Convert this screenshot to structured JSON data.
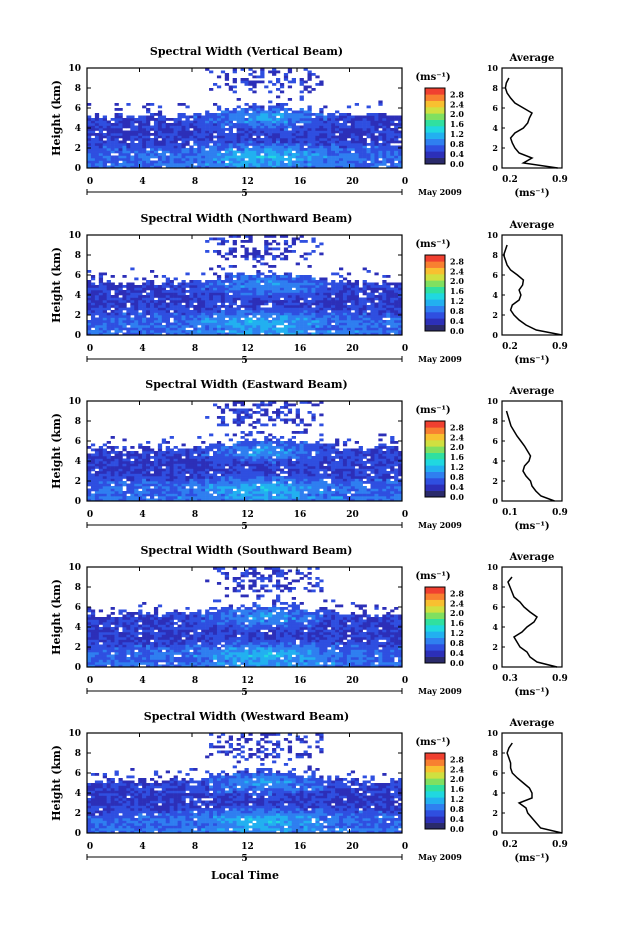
{
  "figure": {
    "colorbar_unit": "(ms⁻¹)",
    "colorbar_ticks": [
      "0.0",
      "0.4",
      "0.8",
      "1.2",
      "1.6",
      "2.0",
      "2.4",
      "2.8"
    ],
    "x_ticks": [
      "0",
      "4",
      "8",
      "12",
      "16",
      "20",
      "0"
    ],
    "date_marker": "5",
    "date_label": "May 2009",
    "y_label": "Height (km)",
    "y_ticks": [
      "0",
      "2",
      "4",
      "6",
      "8",
      "10"
    ],
    "avg_title": "Average",
    "avg_unit": "(ms⁻¹)",
    "x_axis_label": "Local Time",
    "colors": [
      "#2a2a6a",
      "#2c2fb8",
      "#2f4fe0",
      "#2f7ff0",
      "#22b0f0",
      "#20d8e0",
      "#30e0a0",
      "#80e060",
      "#d0e040",
      "#f8c030",
      "#f88030",
      "#f04030"
    ]
  },
  "chart_data": [
    {
      "type": "heatmap",
      "title": "Spectral Width (Vertical Beam)",
      "x_range": [
        0,
        24
      ],
      "y_range": [
        0,
        10
      ],
      "average_profile": {
        "x_ticks": [
          "0.2",
          "0.9"
        ],
        "xlim": [
          0.2,
          0.9
        ],
        "heights": [
          0,
          0.5,
          1,
          1.5,
          2,
          2.5,
          3,
          3.5,
          4,
          4.5,
          5,
          5.5,
          6,
          6.5,
          7,
          7.5,
          8,
          8.5,
          9
        ],
        "values": [
          0.85,
          0.45,
          0.55,
          0.4,
          0.35,
          0.32,
          0.3,
          0.35,
          0.45,
          0.5,
          0.52,
          0.55,
          0.45,
          0.35,
          0.3,
          0.26,
          0.24,
          0.25,
          0.28
        ]
      }
    },
    {
      "type": "heatmap",
      "title": "Spectral Width (Northward Beam)",
      "x_range": [
        0,
        24
      ],
      "y_range": [
        0,
        10
      ],
      "average_profile": {
        "x_ticks": [
          "0.2",
          "0.9"
        ],
        "xlim": [
          0.2,
          0.9
        ],
        "heights": [
          0,
          0.5,
          1,
          1.5,
          2,
          2.5,
          3,
          3.5,
          4,
          4.5,
          5,
          5.5,
          6,
          6.5,
          7,
          7.5,
          8,
          8.5,
          9
        ],
        "values": [
          0.9,
          0.6,
          0.48,
          0.4,
          0.34,
          0.3,
          0.32,
          0.4,
          0.42,
          0.4,
          0.44,
          0.45,
          0.38,
          0.3,
          0.26,
          0.24,
          0.22,
          0.24,
          0.26
        ]
      }
    },
    {
      "type": "heatmap",
      "title": "Spectral Width (Eastward Beam)",
      "x_range": [
        0,
        24
      ],
      "y_range": [
        0,
        10
      ],
      "average_profile": {
        "x_ticks": [
          "0.1",
          "0.9"
        ],
        "xlim": [
          0.1,
          0.9
        ],
        "heights": [
          0,
          0.5,
          1,
          1.5,
          2,
          2.5,
          3,
          3.5,
          4,
          4.5,
          5,
          5.5,
          6,
          6.5,
          7,
          7.5,
          8,
          8.5,
          9
        ],
        "values": [
          0.8,
          0.62,
          0.55,
          0.5,
          0.48,
          0.42,
          0.38,
          0.4,
          0.46,
          0.48,
          0.44,
          0.4,
          0.35,
          0.3,
          0.26,
          0.22,
          0.2,
          0.18,
          0.16
        ]
      }
    },
    {
      "type": "heatmap",
      "title": "Spectral Width (Southward Beam)",
      "x_range": [
        0,
        24
      ],
      "y_range": [
        0,
        10
      ],
      "average_profile": {
        "x_ticks": [
          "0.3",
          "0.9"
        ],
        "xlim": [
          0.3,
          0.9
        ],
        "heights": [
          0,
          0.5,
          1,
          1.5,
          2,
          2.5,
          3,
          3.5,
          4,
          4.5,
          5,
          5.5,
          6,
          6.5,
          7,
          7.5,
          8,
          8.5,
          9
        ],
        "values": [
          0.85,
          0.65,
          0.58,
          0.55,
          0.48,
          0.45,
          0.42,
          0.5,
          0.55,
          0.62,
          0.65,
          0.58,
          0.52,
          0.48,
          0.42,
          0.4,
          0.38,
          0.36,
          0.4
        ]
      }
    },
    {
      "type": "heatmap",
      "title": "Spectral Width (Westward Beam)",
      "x_range": [
        0,
        24
      ],
      "y_range": [
        0,
        10
      ],
      "average_profile": {
        "x_ticks": [
          "0.2",
          "0.9"
        ],
        "xlim": [
          0.2,
          0.9
        ],
        "heights": [
          0,
          0.5,
          1,
          1.5,
          2,
          2.5,
          3,
          3.5,
          4,
          4.5,
          5,
          5.5,
          6,
          6.5,
          7,
          7.5,
          8,
          8.5,
          9
        ],
        "values": [
          0.9,
          0.65,
          0.6,
          0.55,
          0.5,
          0.48,
          0.4,
          0.55,
          0.55,
          0.52,
          0.45,
          0.38,
          0.32,
          0.3,
          0.3,
          0.28,
          0.26,
          0.28,
          0.32
        ]
      }
    }
  ]
}
